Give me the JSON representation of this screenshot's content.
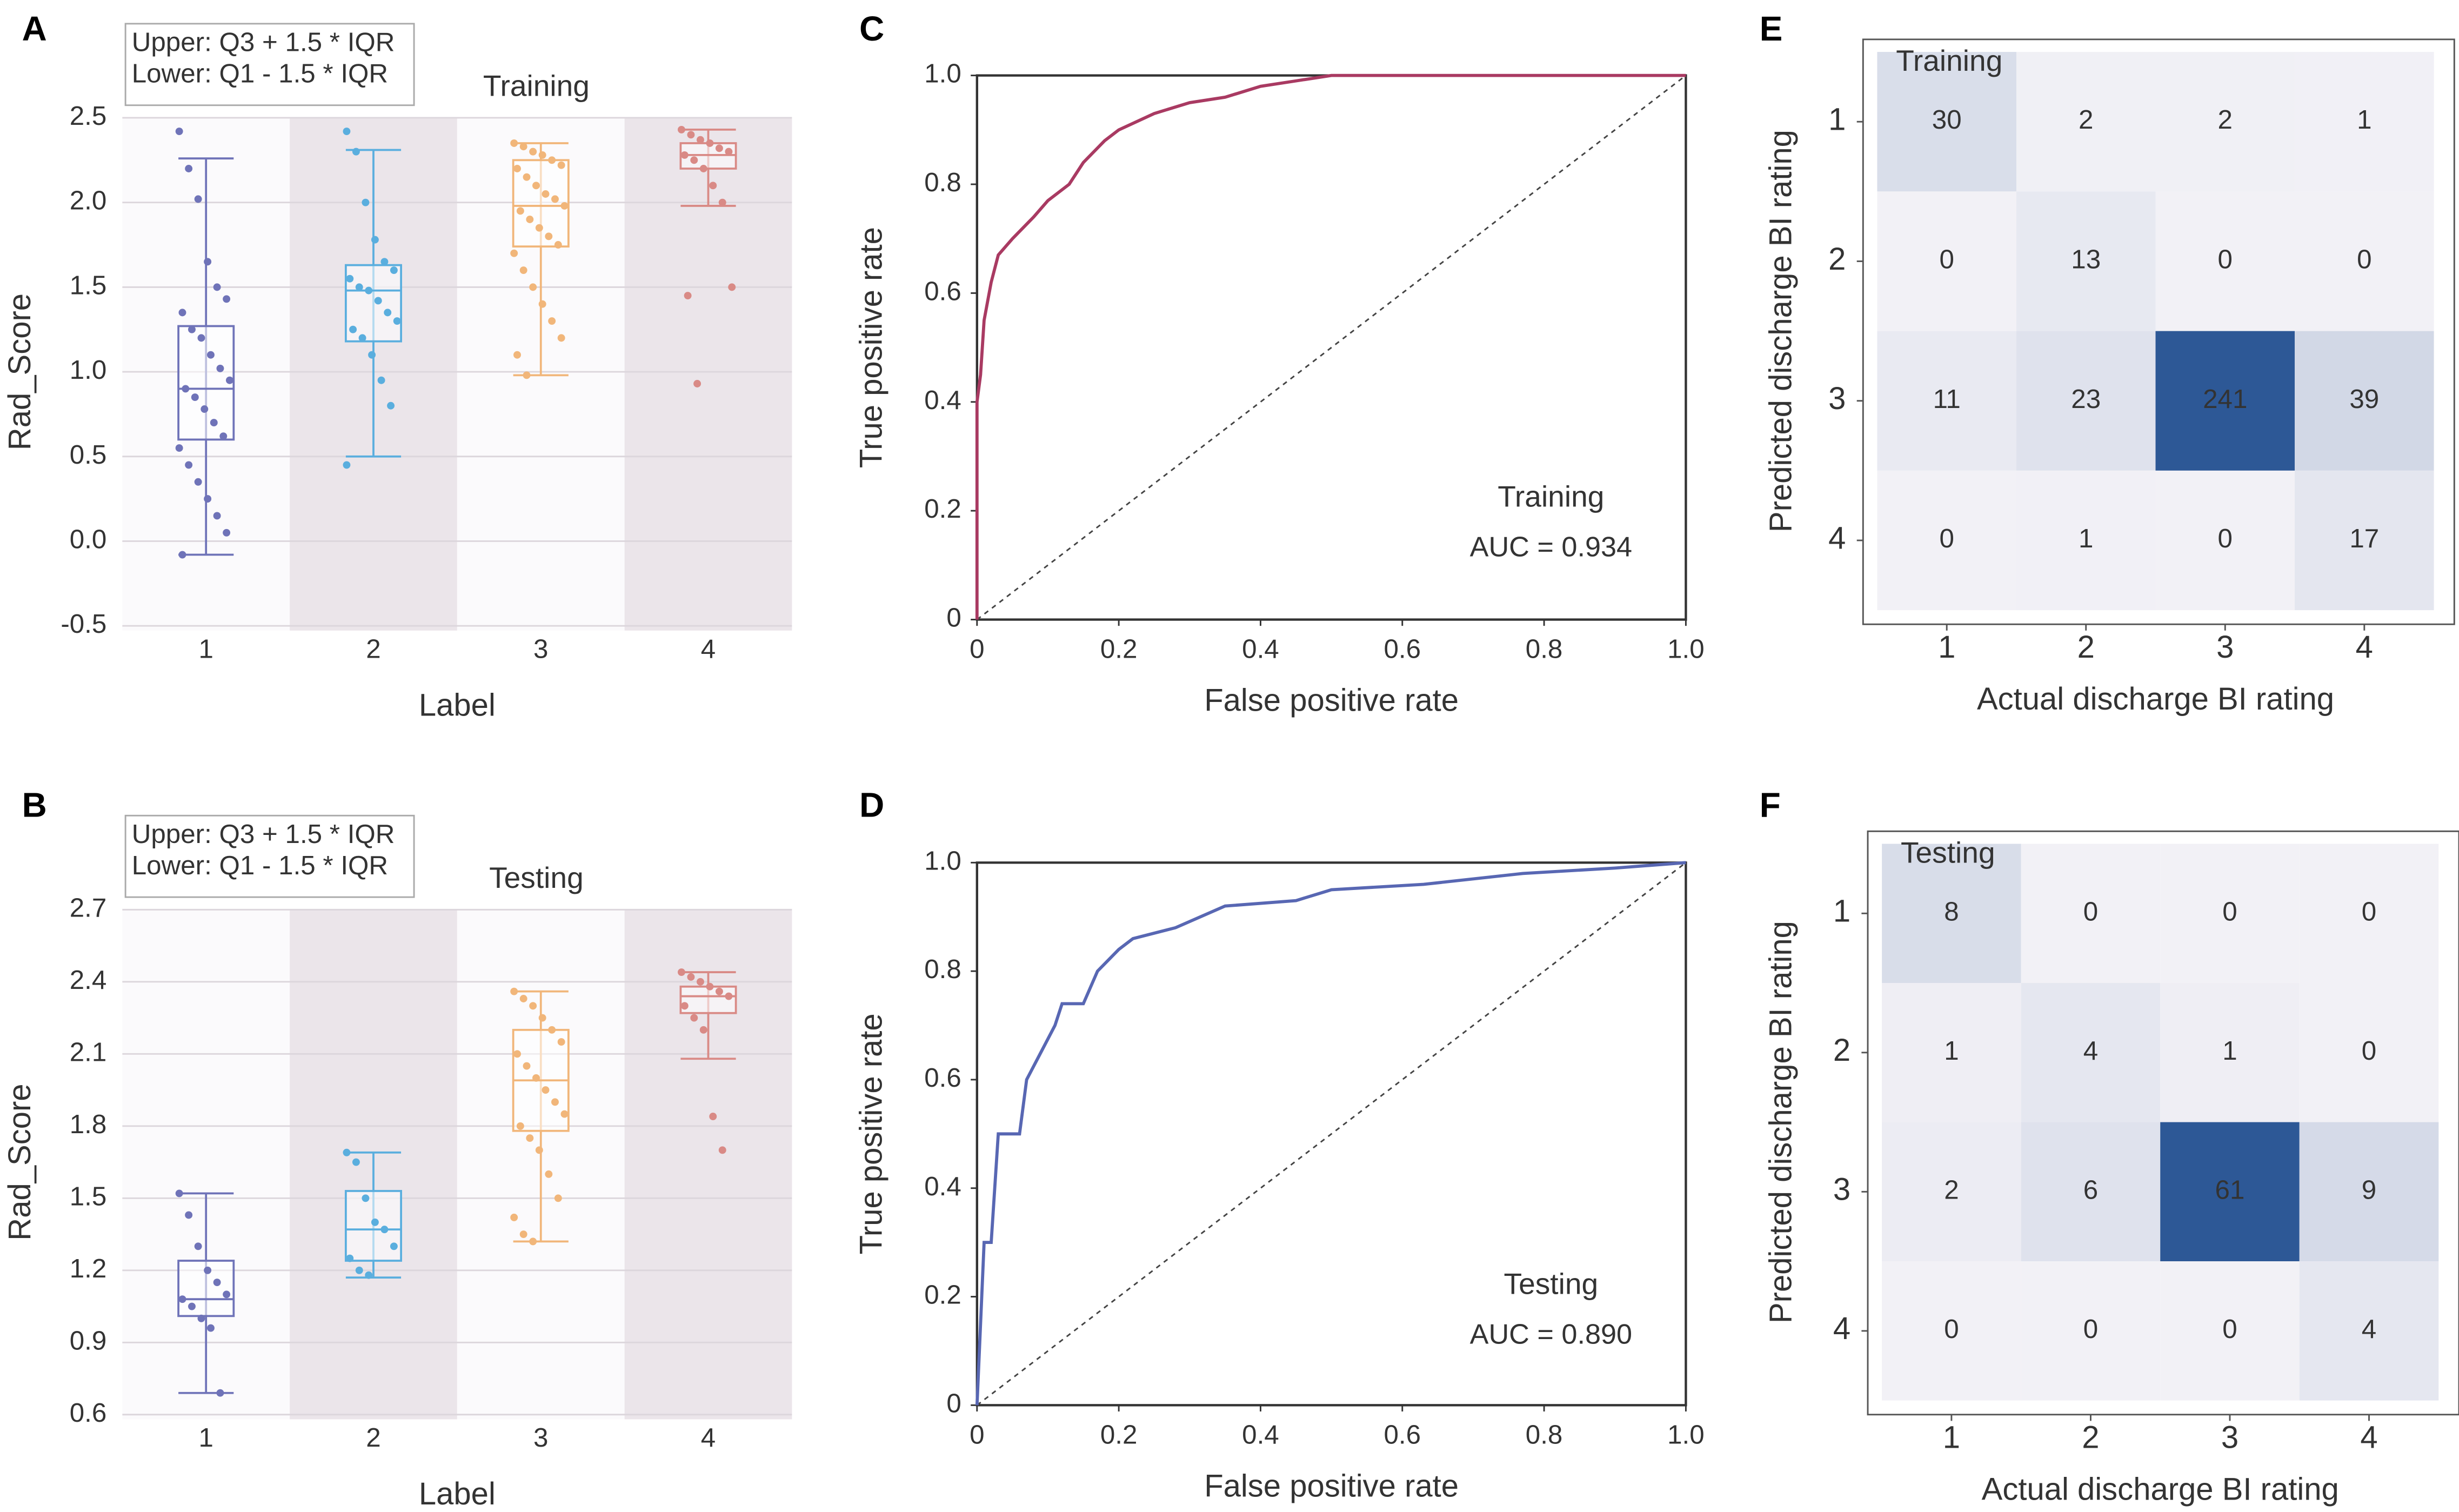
{
  "chart_data": [
    {
      "type": "box",
      "panel": "A",
      "title": "Training",
      "title_color": "#a93a62",
      "notes": [
        "Upper: Q3 + 1.5 * IQR",
        "Lower: Q1 - 1.5 * IQR"
      ],
      "xlabel": "Label",
      "ylabel": "Rad_Score",
      "categories": [
        "1",
        "2",
        "3",
        "4"
      ],
      "colors": [
        "#6f73b8",
        "#5aaede",
        "#f1b67a",
        "#d98a86"
      ],
      "band_colors": [
        "#fbfafc",
        "#ebe5ea"
      ],
      "ylim": [
        -0.5,
        2.5
      ],
      "yticks": [
        -0.5,
        {
          "value": 0,
          "label": "0.0"
        },
        0.5,
        {
          "value": 1,
          "label": "1.0"
        },
        1.5,
        {
          "value": 2,
          "label": "2.0"
        },
        2.5
      ],
      "grid": true,
      "boxes": [
        {
          "low": -0.08,
          "q1": 0.6,
          "median": 0.9,
          "q3": 1.27,
          "high": 2.26
        },
        {
          "low": 0.5,
          "q1": 1.18,
          "median": 1.48,
          "q3": 1.63,
          "high": 2.31
        },
        {
          "low": 0.98,
          "q1": 1.74,
          "median": 1.98,
          "q3": 2.25,
          "high": 2.35
        },
        {
          "low": 1.98,
          "q1": 2.2,
          "median": 2.28,
          "q3": 2.35,
          "high": 2.43
        }
      ],
      "points": [
        [
          2.42,
          2.2,
          2.02,
          1.65,
          1.5,
          1.43,
          1.35,
          1.25,
          1.2,
          1.1,
          1.02,
          0.95,
          0.9,
          0.85,
          0.78,
          0.7,
          0.62,
          0.55,
          0.45,
          0.35,
          0.25,
          0.15,
          0.05,
          -0.08
        ],
        [
          2.42,
          2.3,
          2.0,
          1.78,
          1.65,
          1.6,
          1.55,
          1.5,
          1.48,
          1.42,
          1.35,
          1.3,
          1.25,
          1.2,
          1.1,
          0.95,
          0.8,
          0.45
        ],
        [
          2.35,
          2.33,
          2.3,
          2.28,
          2.25,
          2.22,
          2.2,
          2.15,
          2.1,
          2.05,
          2.02,
          1.98,
          1.95,
          1.9,
          1.85,
          1.8,
          1.75,
          1.7,
          1.6,
          1.5,
          1.4,
          1.3,
          1.2,
          1.1,
          0.98
        ],
        [
          2.43,
          2.4,
          2.37,
          2.35,
          2.32,
          2.3,
          2.28,
          2.25,
          2.2,
          2.1,
          2.0,
          1.5,
          1.45,
          0.93
        ]
      ]
    },
    {
      "type": "box",
      "panel": "B",
      "title": "Testing",
      "title_color": "#3f7fc0",
      "notes": [
        "Upper: Q3 + 1.5 * IQR",
        "Lower: Q1 - 1.5 * IQR"
      ],
      "xlabel": "Label",
      "ylabel": "Rad_Score",
      "categories": [
        "1",
        "2",
        "3",
        "4"
      ],
      "colors": [
        "#6f73b8",
        "#5aaede",
        "#f1b67a",
        "#d98a86"
      ],
      "band_colors": [
        "#fbfafc",
        "#ebe5ea"
      ],
      "ylim": [
        0.6,
        2.7
      ],
      "yticks": [
        0.6,
        0.9,
        1.2,
        1.5,
        1.8,
        2.1,
        2.4,
        2.7
      ],
      "grid": true,
      "boxes": [
        {
          "low": 0.69,
          "q1": 1.01,
          "median": 1.08,
          "q3": 1.24,
          "high": 1.52
        },
        {
          "low": 1.17,
          "q1": 1.24,
          "median": 1.37,
          "q3": 1.53,
          "high": 1.69
        },
        {
          "low": 1.32,
          "q1": 1.78,
          "median": 1.99,
          "q3": 2.2,
          "high": 2.36
        },
        {
          "low": 2.08,
          "q1": 2.27,
          "median": 2.34,
          "q3": 2.38,
          "high": 2.44
        }
      ],
      "points": [
        [
          1.52,
          1.43,
          1.3,
          1.2,
          1.15,
          1.1,
          1.08,
          1.05,
          1.0,
          0.96,
          0.69
        ],
        [
          1.69,
          1.65,
          1.5,
          1.4,
          1.37,
          1.3,
          1.25,
          1.2,
          1.18
        ],
        [
          2.36,
          2.33,
          2.3,
          2.25,
          2.2,
          2.15,
          2.1,
          2.05,
          2.0,
          1.95,
          1.9,
          1.85,
          1.8,
          1.75,
          1.7,
          1.6,
          1.5,
          1.42,
          1.35,
          1.32
        ],
        [
          2.44,
          2.42,
          2.4,
          2.38,
          2.36,
          2.34,
          2.3,
          2.25,
          2.2,
          1.84,
          1.7
        ]
      ]
    },
    {
      "type": "line",
      "panel": "C",
      "title": "Training",
      "title_color": "#a93a62",
      "annotation": "AUC = 0.934",
      "xlabel": "False positive rate",
      "ylabel": "True positive rate",
      "xlim": [
        0,
        1
      ],
      "ylim": [
        0,
        1
      ],
      "xticks": [
        0,
        0.2,
        0.4,
        0.6,
        0.8,
        {
          "value": 1,
          "label": "1.0"
        }
      ],
      "yticks": [
        0,
        0.2,
        0.4,
        0.6,
        0.8,
        {
          "value": 1,
          "label": "1.0"
        }
      ],
      "series": [
        {
          "color": "#a93a62",
          "x": [
            0,
            0,
            0.005,
            0.01,
            0.02,
            0.03,
            0.05,
            0.08,
            0.1,
            0.13,
            0.15,
            0.18,
            0.2,
            0.25,
            0.3,
            0.35,
            0.4,
            0.45,
            0.5,
            1.0
          ],
          "values": [
            0,
            0.4,
            0.45,
            0.55,
            0.62,
            0.67,
            0.7,
            0.74,
            0.77,
            0.8,
            0.84,
            0.88,
            0.9,
            0.93,
            0.95,
            0.96,
            0.98,
            0.99,
            1.0,
            1.0
          ]
        }
      ]
    },
    {
      "type": "line",
      "panel": "D",
      "title": "Testing",
      "title_color": "#3f7fc0",
      "annotation": "AUC = 0.890",
      "xlabel": "False positive rate",
      "ylabel": "True positive rate",
      "xlim": [
        0,
        1
      ],
      "ylim": [
        0,
        1
      ],
      "xticks": [
        0,
        0.2,
        0.4,
        0.6,
        0.8,
        {
          "value": 1,
          "label": "1.0"
        }
      ],
      "yticks": [
        0,
        0.2,
        0.4,
        0.6,
        0.8,
        {
          "value": 1,
          "label": "1.0"
        }
      ],
      "series": [
        {
          "color": "#5867b3",
          "x": [
            0,
            0.01,
            0.02,
            0.03,
            0.06,
            0.07,
            0.09,
            0.11,
            0.12,
            0.15,
            0.17,
            0.2,
            0.22,
            0.28,
            0.35,
            0.45,
            0.5,
            0.63,
            0.77,
            0.9,
            1.0
          ],
          "values": [
            0,
            0.3,
            0.3,
            0.5,
            0.5,
            0.6,
            0.65,
            0.7,
            0.74,
            0.74,
            0.8,
            0.84,
            0.86,
            0.88,
            0.92,
            0.93,
            0.95,
            0.96,
            0.98,
            0.99,
            1.0
          ]
        }
      ]
    },
    {
      "type": "heatmap",
      "panel": "E",
      "title": "Training",
      "title_color": "#a93a62",
      "xlabel": "Actual discharge BI rating",
      "ylabel": "Predicted discharge BI rating",
      "x_categories": [
        "1",
        "2",
        "3",
        "4"
      ],
      "y_categories": [
        "1",
        "2",
        "3",
        "4"
      ],
      "colormap": [
        "#f2f1f6",
        "#2d5896"
      ],
      "values": [
        [
          30,
          2,
          2,
          1
        ],
        [
          0,
          13,
          0,
          0
        ],
        [
          11,
          23,
          241,
          39
        ],
        [
          0,
          1,
          0,
          17
        ]
      ]
    },
    {
      "type": "heatmap",
      "panel": "F",
      "title": "Testing",
      "title_color": "#3f7fc0",
      "xlabel": "Actual discharge BI rating",
      "ylabel": "Predicted discharge BI rating",
      "x_categories": [
        "1",
        "2",
        "3",
        "4"
      ],
      "y_categories": [
        "1",
        "2",
        "3",
        "4"
      ],
      "colormap": [
        "#f2f1f6",
        "#2d5896"
      ],
      "values": [
        [
          8,
          0,
          0,
          0
        ],
        [
          1,
          4,
          1,
          0
        ],
        [
          2,
          6,
          61,
          9
        ],
        [
          0,
          0,
          0,
          4
        ]
      ]
    }
  ]
}
